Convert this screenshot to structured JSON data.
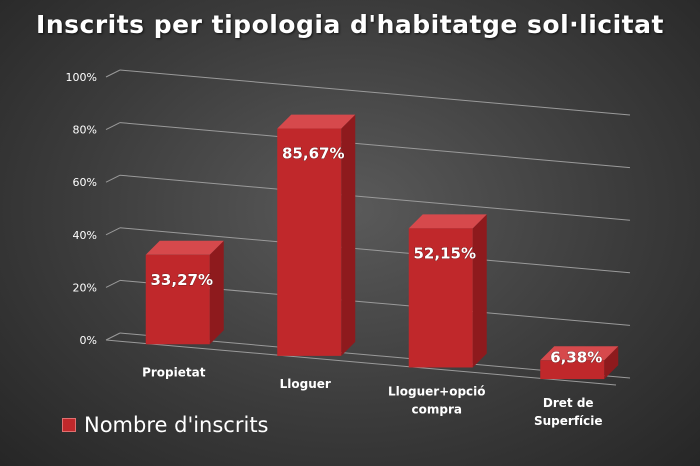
{
  "chart_data": {
    "type": "bar",
    "title": "Inscrits per tipologia d'habitatge sol·licitat",
    "categories": [
      "Propietat",
      "Lloguer",
      "Lloguer+opció compra",
      "Dret de Superfície"
    ],
    "category_lines": [
      [
        "Propietat"
      ],
      [
        "Lloguer"
      ],
      [
        "Lloguer+opció",
        "compra"
      ],
      [
        "Dret de",
        "Superfície"
      ]
    ],
    "series": [
      {
        "name": "Nombre d'inscrits",
        "values": [
          33.27,
          85.67,
          52.15,
          6.38
        ]
      }
    ],
    "data_labels": [
      "33,27%",
      "85,67%",
      "52,15%",
      "6,38%"
    ],
    "yticks": [
      "0%",
      "20%",
      "40%",
      "60%",
      "80%",
      "100%"
    ],
    "ylim": [
      0,
      100
    ],
    "xlabel": "",
    "ylabel": "",
    "grid": true,
    "legend": "bottom-left",
    "bar_color": "#c0282b",
    "bar_side_color": "#8e1a1d",
    "bar_top_color": "#d6494c",
    "gridline_color": "#9a9a9a"
  }
}
